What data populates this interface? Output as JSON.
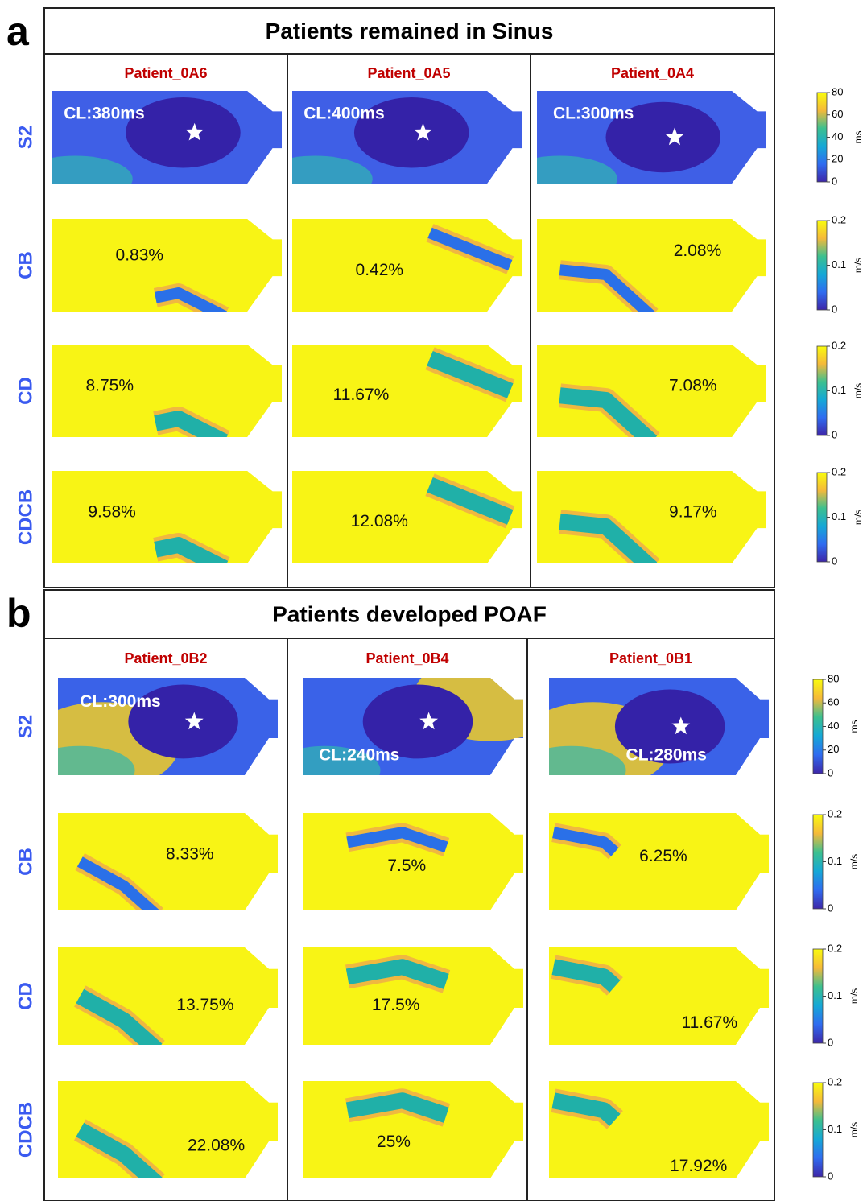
{
  "panels": [
    {
      "label": "a",
      "title": "Patients remained in Sinus",
      "rows": [
        "S2",
        "CB",
        "CD",
        "CDCB"
      ],
      "patients": [
        {
          "name": "Patient_0A6",
          "cells": [
            "CL:380ms",
            "0.83%",
            "8.75%",
            "9.58%"
          ]
        },
        {
          "name": "Patient_0A5",
          "cells": [
            "CL:400ms",
            "0.42%",
            "11.67%",
            "12.08%"
          ]
        },
        {
          "name": "Patient_0A4",
          "cells": [
            "CL:300ms",
            "2.08%",
            "7.08%",
            "9.17%"
          ]
        }
      ]
    },
    {
      "label": "b",
      "title": "Patients developed POAF",
      "rows": [
        "S2",
        "CB",
        "CD",
        "CDCB"
      ],
      "patients": [
        {
          "name": "Patient_0B2",
          "cells": [
            "CL:300ms",
            "8.33%",
            "13.75%",
            "22.08%"
          ]
        },
        {
          "name": "Patient_0B4",
          "cells": [
            "CL:240ms",
            "7.5%",
            "17.5%",
            "25%"
          ]
        },
        {
          "name": "Patient_0B1",
          "cells": [
            "CL:280ms",
            "6.25%",
            "11.67%",
            "17.92%"
          ]
        }
      ]
    }
  ],
  "colorbars": [
    {
      "unit": "ms",
      "lim": [
        0,
        80
      ],
      "ticks": [
        0,
        20,
        40,
        60,
        80
      ]
    },
    {
      "unit": "m/s",
      "lim": [
        0,
        0.2
      ],
      "ticks": [
        0,
        0.1,
        0.2
      ]
    }
  ]
}
